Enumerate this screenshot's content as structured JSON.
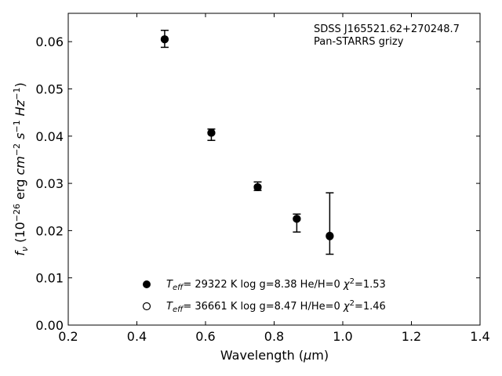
{
  "chart_data": {
    "type": "scatter",
    "xlabel": "Wavelength (μm)",
    "ylabel": "f_ν (10^-26 erg cm^-2 s^-1 Hz^-1)",
    "xlim": [
      0.2,
      1.4
    ],
    "ylim": [
      0.0,
      0.066
    ],
    "x_ticks": [
      "0.2",
      "0.4",
      "0.6",
      "0.8",
      "1.0",
      "1.2",
      "1.4"
    ],
    "y_ticks": [
      "0.00",
      "0.01",
      "0.02",
      "0.03",
      "0.04",
      "0.05",
      "0.06"
    ],
    "grid": false,
    "annotation": [
      "SDSS J165521.62+270248.7",
      "Pan-STARRS grizy"
    ],
    "observed": {
      "x": [
        0.481,
        0.617,
        0.752,
        0.866,
        0.962
      ],
      "y": [
        0.0606,
        0.0403,
        0.0294,
        0.0216,
        0.0215
      ],
      "yerr": [
        0.0018,
        0.0012,
        0.0009,
        0.0019,
        0.0065
      ]
    },
    "series": [
      {
        "name": "T_eff= 29322 K  log g=8.38  He/H=0  χ²=1.53",
        "marker": "filled-circle",
        "x": [
          0.481,
          0.617,
          0.752,
          0.866,
          0.962
        ],
        "y": [
          0.0605,
          0.0407,
          0.0292,
          0.0225,
          0.0188
        ]
      },
      {
        "name": "T_eff= 36661 K  log g=8.47  H/He=0  χ²=1.46",
        "marker": "open-circle",
        "x": [
          0.481,
          0.617,
          0.752,
          0.866,
          0.962
        ],
        "y": [
          0.0605,
          0.0407,
          0.0292,
          0.0225,
          0.0189
        ]
      }
    ]
  }
}
